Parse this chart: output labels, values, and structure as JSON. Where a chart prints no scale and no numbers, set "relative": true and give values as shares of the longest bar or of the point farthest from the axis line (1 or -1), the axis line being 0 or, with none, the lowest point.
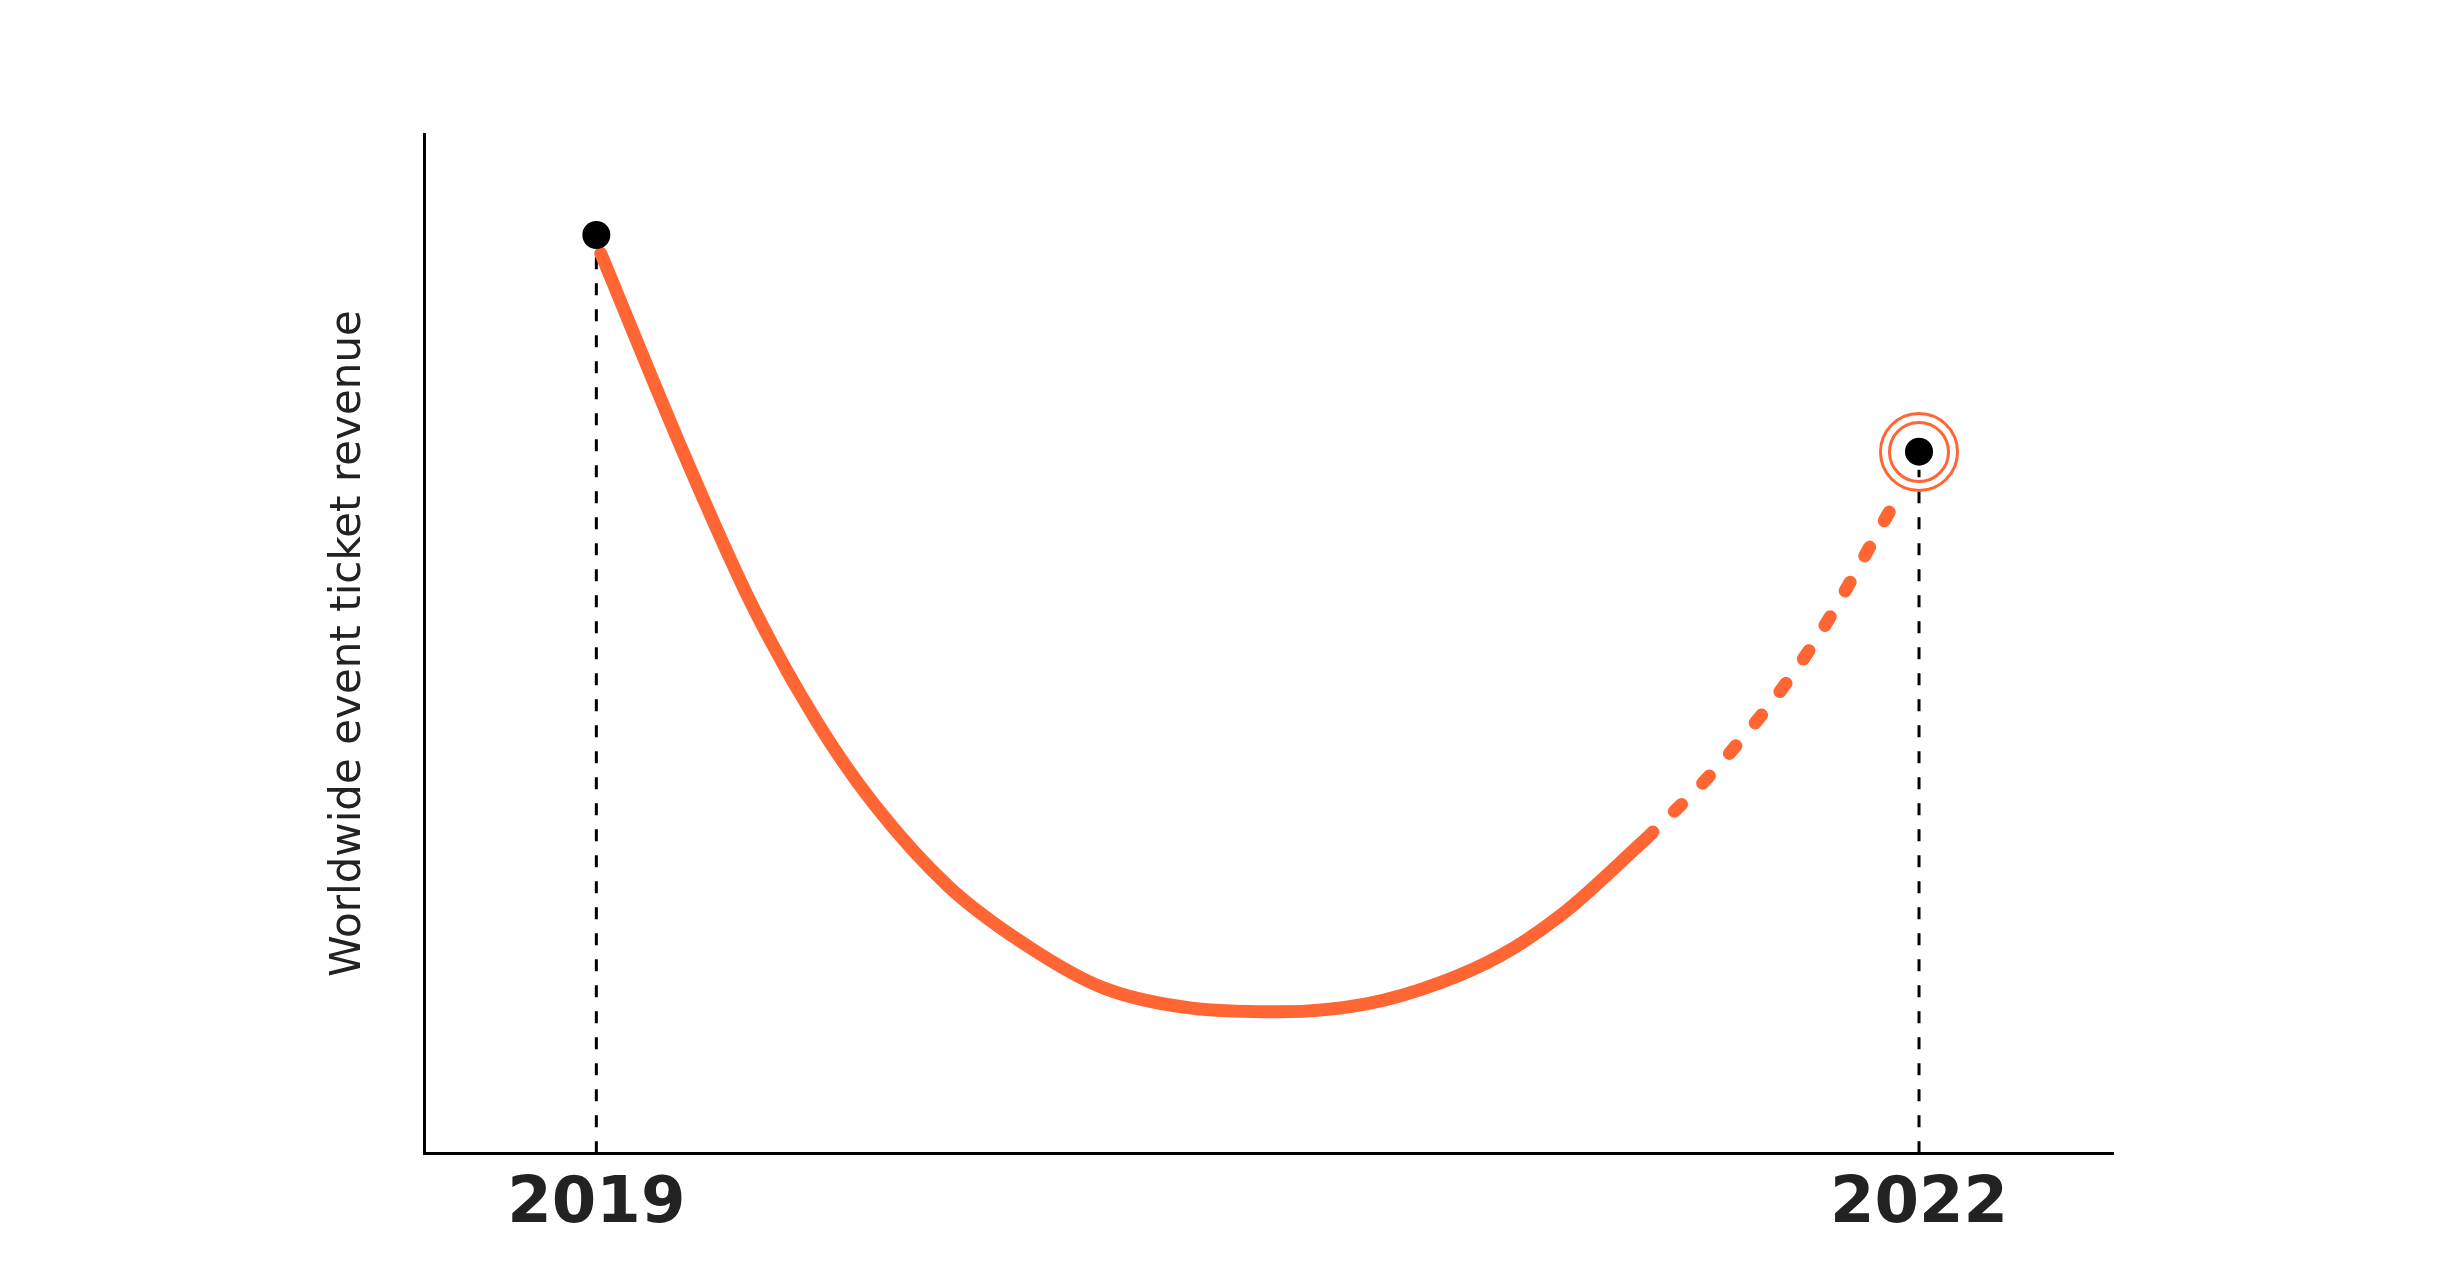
{
  "chart_data": {
    "type": "line",
    "relative": true,
    "ylabel": "Worldwide event ticket revenue",
    "xlim": [
      2018.61,
      2022.44
    ],
    "xticks": [
      2019,
      2022
    ],
    "grid": false,
    "legend": false,
    "series": [
      {
        "color": "#ff6633",
        "line_style": "solid",
        "marker": "none",
        "x": [
          2019.01,
          2019.2,
          2019.35,
          2019.5,
          2019.63,
          2019.8,
          2019.98,
          2020.15,
          2020.35,
          2020.55,
          2020.75,
          2020.91,
          2021.05,
          2021.19,
          2021.38
        ],
        "values": [
          0.98,
          0.76,
          0.6,
          0.47,
          0.38,
          0.29,
          0.225,
          0.18,
          0.158,
          0.154,
          0.163,
          0.185,
          0.215,
          0.26,
          0.342
        ]
      },
      {
        "color": "#ff6633",
        "line_style": "dotted",
        "marker": "none",
        "x": [
          2021.38,
          2021.54,
          2021.75,
          2021.95
        ],
        "values": [
          0.342,
          0.419,
          0.547,
          0.713
        ]
      },
      {
        "type": "scatter",
        "color": "#000000",
        "marker": "circle",
        "x": [
          2019,
          2022
        ],
        "values": [
          1,
          0.764
        ]
      }
    ],
    "ref_lines": [
      {
        "axis": "x",
        "value": 2019,
        "color": "#000000",
        "line_style": "dashed"
      },
      {
        "axis": "x",
        "value": 2022,
        "color": "#000000",
        "line_style": "dashed"
      }
    ]
  }
}
